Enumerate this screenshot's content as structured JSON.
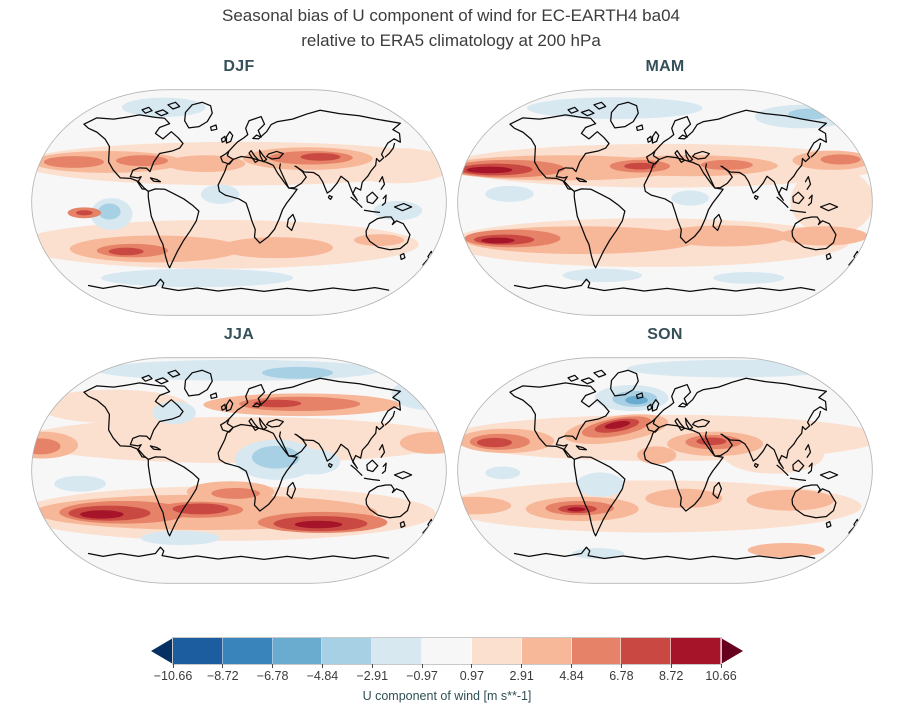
{
  "figure": {
    "title_line1": "Seasonal bias of U component of wind for EC-EARTH4 ba04",
    "title_line2": "relative to ERA5 climatology at 200 hPa"
  },
  "panels": [
    {
      "id": "djf",
      "label": "DJF"
    },
    {
      "id": "mam",
      "label": "MAM"
    },
    {
      "id": "jja",
      "label": "JJA"
    },
    {
      "id": "son",
      "label": "SON"
    }
  ],
  "colorbar": {
    "label": "U component of wind [m s**-1]",
    "tick_labels": [
      "−10.66",
      "−8.72",
      "−6.78",
      "−4.84",
      "−2.91",
      "−0.97",
      "0.97",
      "2.91",
      "4.84",
      "6.78",
      "8.72",
      "10.66"
    ],
    "colors": [
      "#053061",
      "#1c5d9f",
      "#3884bb",
      "#6aacd0",
      "#a7d0e4",
      "#d7e8f1",
      "#f7f7f7",
      "#fce0cf",
      "#f7b799",
      "#e58267",
      "#ca4842",
      "#a51429",
      "#67001f"
    ]
  },
  "colors": {
    "main_title": "#3c3c3c",
    "panel_title": "#355059",
    "tick_text": "#3a3a3a",
    "coastline": "#0a0a0a",
    "map_edge": "#b3b3b3",
    "map_base": "#f7f7f7",
    "background": "#ffffff"
  },
  "chart_data": {
    "type": "heatmap",
    "subtype": "filled-contour global maps (Robinson projection), 2x2 seasonal panels with shared horizontal colorbar extended at both ends",
    "title": "Seasonal bias of U component of wind for EC-EARTH4 ba04 relative to ERA5 climatology at 200 hPa",
    "panels": [
      "DJF",
      "MAM",
      "JJA",
      "SON"
    ],
    "variable": "U component of wind bias (EC-EARTH4 ba04 minus ERA5) at 200 hPa",
    "units": "m s**-1",
    "levels": [
      -10.66,
      -8.72,
      -6.78,
      -4.84,
      -2.91,
      -0.97,
      0.97,
      2.91,
      4.84,
      6.78,
      8.72,
      10.66
    ],
    "colormap": "RdBu_r (blue = negative bias, red = positive bias), triangular extensions beyond -10.66 and 10.66",
    "legend_position": "bottom horizontal colorbar",
    "notable_features": {
      "DJF": "Positive (red) bias bands along NH subtropics (N Pacific, N Atlantic/US, Middle East-Asia core ~4-7 m/s) and SH mid-latitudes with dark core off Chile; weak negative (blue) patches in SE Pacific, equatorial Atlantic, Arctic and far Southern Ocean.",
      "MAM": "Strong positive band across NH ~30N with dark cores (>8 m/s) over west/central N Pacific and mid-Atlantic; strong SH band with dark core in SE Pacific; pale negative areas near poles and equatorial east Pacific.",
      "JJA": "Positive band over central Asia ~50N and very strong SH mid-latitude band (dark cores SE Pacific, S Atlantic, S Indian/Australia); negative (blue) region over Arabia-India and Arctic; mostly weak positive elsewhere.",
      "SON": "Intense positive core over NW Atlantic (>10 m/s) with adjacent negative core over Labrador/Greenland; positive cores N Pacific, N Africa/Middle East and SE Pacific; broad weak positive bias elsewhere."
    }
  }
}
